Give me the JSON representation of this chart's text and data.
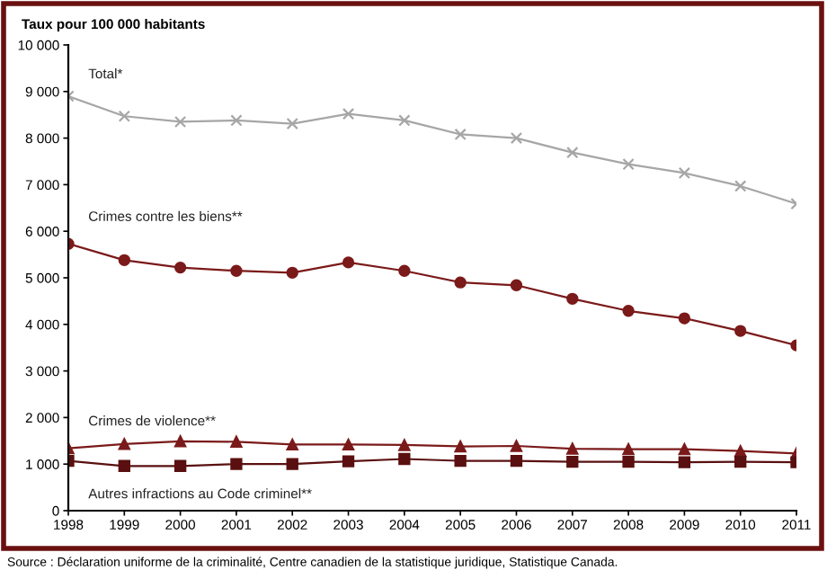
{
  "chart_data": {
    "type": "line",
    "ylabel": "Taux pour 100 000 habitants",
    "x": [
      1998,
      1999,
      2000,
      2001,
      2002,
      2003,
      2004,
      2005,
      2006,
      2007,
      2008,
      2009,
      2010,
      2011
    ],
    "series": [
      {
        "name": "Total*",
        "color": "#a6a6a6",
        "marker": "cross",
        "values": [
          8900,
          8470,
          8350,
          8380,
          8310,
          8520,
          8380,
          8080,
          8000,
          7690,
          7440,
          7250,
          6970,
          6590
        ]
      },
      {
        "name": "Crimes contre les biens**",
        "color": "#7b1a1a",
        "marker": "circle",
        "values": [
          5730,
          5380,
          5220,
          5150,
          5110,
          5330,
          5150,
          4900,
          4840,
          4550,
          4290,
          4130,
          3860,
          3550
        ]
      },
      {
        "name": "Crimes de violence**",
        "color": "#7b1a1a",
        "marker": "triangle",
        "values": [
          1340,
          1430,
          1490,
          1480,
          1420,
          1420,
          1410,
          1380,
          1390,
          1330,
          1320,
          1320,
          1280,
          1230
        ]
      },
      {
        "name": "Autres infractions au Code criminel**",
        "color": "#5a1010",
        "marker": "square",
        "values": [
          1070,
          960,
          960,
          1000,
          1000,
          1060,
          1110,
          1070,
          1070,
          1050,
          1050,
          1040,
          1050,
          1040
        ]
      }
    ],
    "xlim": [
      1998,
      2011
    ],
    "xticks": [
      1998,
      1999,
      2000,
      2001,
      2002,
      2003,
      2004,
      2005,
      2006,
      2007,
      2008,
      2009,
      2010,
      2011
    ],
    "ylim": [
      0,
      10000
    ],
    "yticks": [
      0,
      {
        "value": 1000,
        "label": "1 000"
      },
      {
        "value": 2000,
        "label": "2 000"
      },
      {
        "value": 3000,
        "label": "3 000"
      },
      {
        "value": 4000,
        "label": "4 000"
      },
      {
        "value": 5000,
        "label": "5 000"
      },
      {
        "value": 6000,
        "label": "6 000"
      },
      {
        "value": 7000,
        "label": "7 000"
      },
      {
        "value": 8000,
        "label": "8 000"
      },
      {
        "value": 9000,
        "label": "9 000"
      },
      {
        "value": 10000,
        "label": "10 000"
      }
    ],
    "grid": false,
    "legend": false,
    "line_style": "solid",
    "annotations": [
      "Source : Déclaration uniforme de la criminalité, Centre canadien de la statistique juridique, Statistique Canada."
    ]
  }
}
